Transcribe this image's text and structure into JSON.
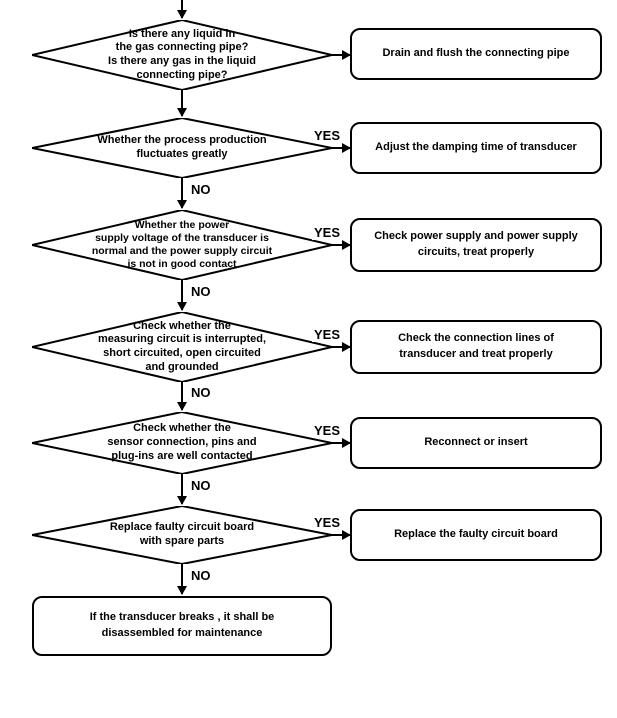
{
  "type": "flowchart",
  "background_color": "#ffffff",
  "border_color": "#000000",
  "text_color": "#000000",
  "line_width": 2,
  "node_font_size": 11,
  "label_font_size": 13,
  "rect_border_radius": 10,
  "labels": {
    "yes": "YES",
    "no": "NO"
  },
  "nodes": {
    "d1": {
      "text": "Is there any liquid in\nthe gas connecting pipe?\nIs there any gas in the liquid\nconnecting pipe?"
    },
    "r1": {
      "text": "Drain and flush the connecting pipe"
    },
    "d2": {
      "text": "Whether the process production\nfluctuates greatly"
    },
    "r2": {
      "text": "Adjust the damping time of transducer"
    },
    "d3": {
      "text": "Whether the power\nsupply voltage of the transducer is\nnormal and the power supply circuit\nis not in good contact"
    },
    "r3": {
      "text": "Check power supply and power supply\ncircuits, treat properly"
    },
    "d4": {
      "text": "Check whether the\nmeasuring circuit is interrupted,\nshort circuited, open circuited\nand grounded"
    },
    "r4": {
      "text": "Check the connection lines of\ntransducer and treat properly"
    },
    "d5": {
      "text": "Check whether the\nsensor connection, pins and\nplug-ins are well contacted"
    },
    "r5": {
      "text": "Reconnect or insert"
    },
    "d6": {
      "text": "Replace faulty circuit board\nwith spare parts"
    },
    "r6": {
      "text": "Replace the faulty circuit board"
    },
    "r7": {
      "text": "If the transducer breaks , it shall be\ndisassembled for maintenance"
    }
  }
}
